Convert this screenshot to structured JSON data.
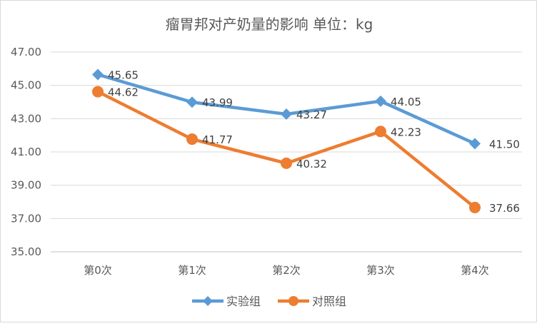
{
  "chart_data": {
    "type": "line",
    "title": "瘤胃邦对产奶量的影响 单位：kg",
    "categories": [
      "第0次",
      "第1次",
      "第2次",
      "第3次",
      "第4次"
    ],
    "ylim": [
      35.0,
      47.0
    ],
    "yticks": [
      "35.00",
      "37.00",
      "39.00",
      "41.00",
      "43.00",
      "45.00",
      "47.00"
    ],
    "grid": true,
    "legend_position": "bottom",
    "series": [
      {
        "name": "实验组",
        "values": [
          45.65,
          43.99,
          43.27,
          44.05,
          41.5
        ],
        "labels": [
          "45.65",
          "43.99",
          "43.27",
          "44.05",
          "41.50"
        ],
        "color": "#5b9bd5",
        "marker": "diamond"
      },
      {
        "name": "对照组",
        "values": [
          44.62,
          41.77,
          40.32,
          42.23,
          37.66
        ],
        "labels": [
          "44.62",
          "41.77",
          "40.32",
          "42.23",
          "37.66"
        ],
        "color": "#ed7d31",
        "marker": "circle"
      }
    ]
  }
}
